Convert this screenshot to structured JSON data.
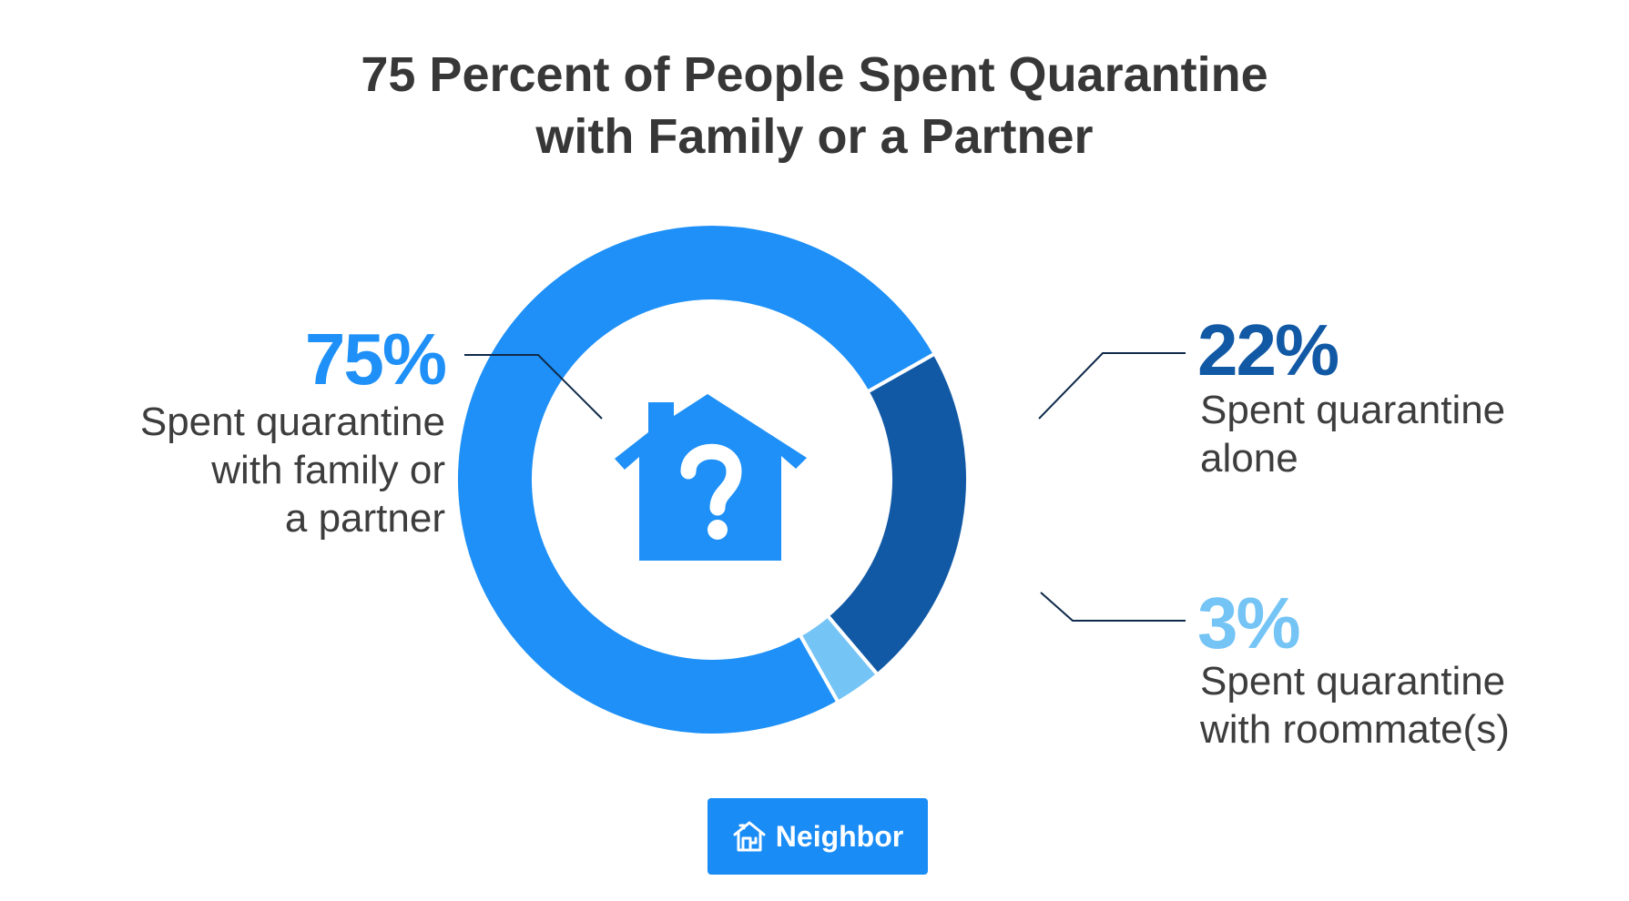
{
  "title": {
    "line1": "75 Percent of People Spent Quarantine",
    "line2": "with Family or a Partner"
  },
  "colors": {
    "family": "#1e90f7",
    "alone": "#1259a5",
    "roommates": "#74c4f5",
    "leader": "#0f2a4a",
    "text": "#3d3d3d",
    "brand": "#1a8cf5"
  },
  "chart_data": {
    "type": "pie",
    "style": "donut",
    "center_icon": "house-question-icon",
    "slices": [
      {
        "key": "family",
        "value": 75,
        "label": "75%",
        "description": [
          "Spent quarantine",
          "with family or",
          "a partner"
        ]
      },
      {
        "key": "alone",
        "value": 22,
        "label": "22%",
        "description": [
          "Spent quarantine",
          "alone"
        ]
      },
      {
        "key": "roommates",
        "value": 3,
        "label": "3%",
        "description": [
          "Spent quarantine",
          "with roommate(s)"
        ]
      }
    ]
  },
  "logo": {
    "text": "Neighbor",
    "icon": "house-logo-icon"
  }
}
